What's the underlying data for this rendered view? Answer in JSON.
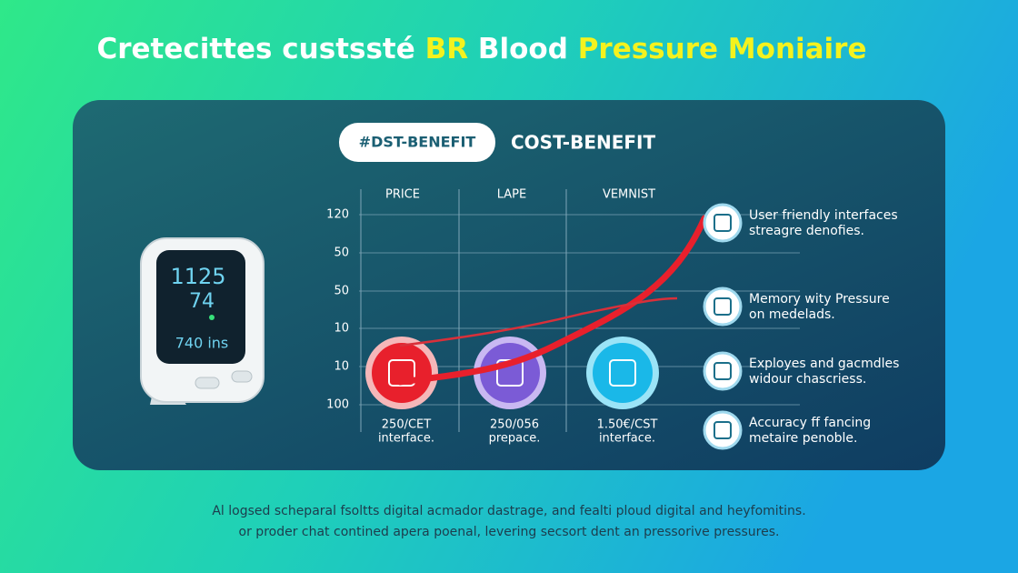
{
  "header": {
    "title": [
      {
        "text": "Cretecittes custssté "
      },
      {
        "text": "BR",
        "highlight": true
      },
      {
        "text": " Blood "
      },
      {
        "text": "Pressure Moniaire",
        "highlight": true
      }
    ]
  },
  "panel": {
    "badge": "#DST-BENEFIT",
    "heading": "COST-BENEFIT",
    "chart": {
      "columns": [
        "PRICE",
        "LAPE",
        "VEMNIST"
      ],
      "row_labels": [
        "120",
        "50",
        "50",
        "10",
        "10",
        "100"
      ],
      "options": [
        {
          "line1": "250/CET",
          "line2": "interface."
        },
        {
          "line1": "250/056",
          "line2": "prepace."
        },
        {
          "line1": "1.50€/CST",
          "line2": "interface."
        }
      ]
    },
    "features": [
      {
        "line1": "User friendly interfaces",
        "line2": "streagre denofies."
      },
      {
        "line1": "Memory wity Pressure",
        "line2": "on medelads."
      },
      {
        "line1": "Exployes and gacmdles",
        "line2": "widour chascriess."
      },
      {
        "line1": "Accuracy ff fancing",
        "line2": "metaire penoble."
      }
    ]
  },
  "device": {
    "line1": "1125",
    "line2": "74",
    "line3": "740 ins"
  },
  "footer": [
    "Al logsed scheparal fsoltts digital acmador dastrage, and fealti ploud digital and heyfomitins.",
    "or proder chat contined apera poenal, levering secsort dent an pressorive pressures."
  ]
}
